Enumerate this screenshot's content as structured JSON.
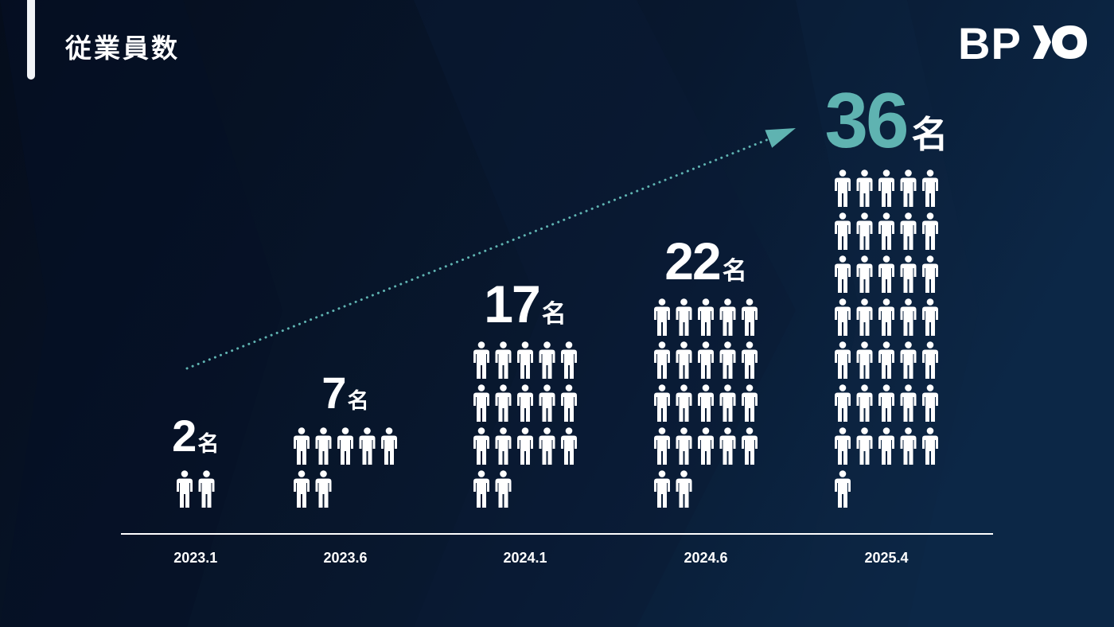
{
  "header": {
    "title": "従業員数",
    "logo_text": "BPIO"
  },
  "colors": {
    "accent": "#5fb3b1",
    "text": "#ffffff",
    "background": "#07152b"
  },
  "chart_data": {
    "type": "bar",
    "categories": [
      "2023.1",
      "2023.6",
      "2024.1",
      "2024.6",
      "2025.4"
    ],
    "values": [
      2,
      7,
      17,
      22,
      36
    ],
    "unit": "名",
    "icon": "person-icon",
    "icons_per_row": 5,
    "highlight_index": 4,
    "trend_arrow": {
      "from": "2023.1",
      "to": "2025.4",
      "style": "dotted"
    }
  }
}
